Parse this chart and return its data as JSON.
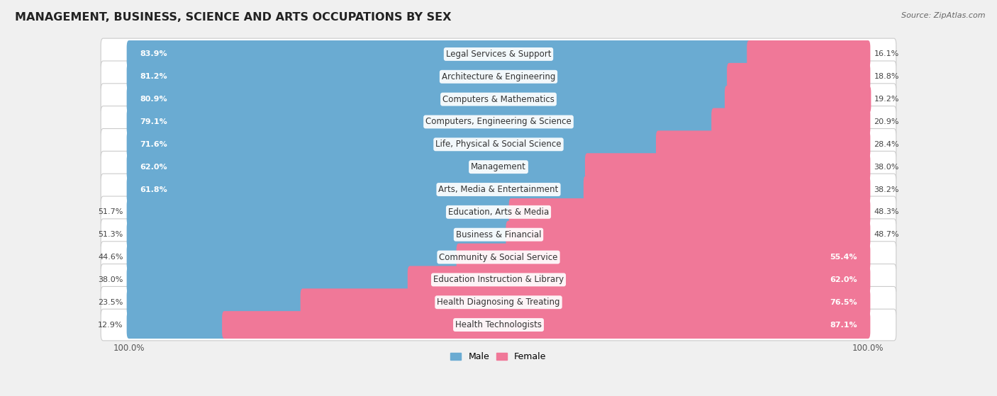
{
  "title": "MANAGEMENT, BUSINESS, SCIENCE AND ARTS OCCUPATIONS BY SEX",
  "source": "Source: ZipAtlas.com",
  "categories": [
    "Legal Services & Support",
    "Architecture & Engineering",
    "Computers & Mathematics",
    "Computers, Engineering & Science",
    "Life, Physical & Social Science",
    "Management",
    "Arts, Media & Entertainment",
    "Education, Arts & Media",
    "Business & Financial",
    "Community & Social Service",
    "Education Instruction & Library",
    "Health Diagnosing & Treating",
    "Health Technologists"
  ],
  "male": [
    83.9,
    81.2,
    80.9,
    79.1,
    71.6,
    62.0,
    61.8,
    51.7,
    51.3,
    44.6,
    38.0,
    23.5,
    12.9
  ],
  "female": [
    16.1,
    18.8,
    19.2,
    20.9,
    28.4,
    38.0,
    38.2,
    48.3,
    48.7,
    55.4,
    62.0,
    76.5,
    87.1
  ],
  "male_color": "#6aabd2",
  "female_color": "#f07898",
  "bg_color": "#f0f0f0",
  "row_bg": "#ffffff",
  "title_fontsize": 11.5,
  "label_fontsize": 8.5,
  "pct_fontsize": 8.0,
  "tick_fontsize": 8.5,
  "legend_fontsize": 9
}
